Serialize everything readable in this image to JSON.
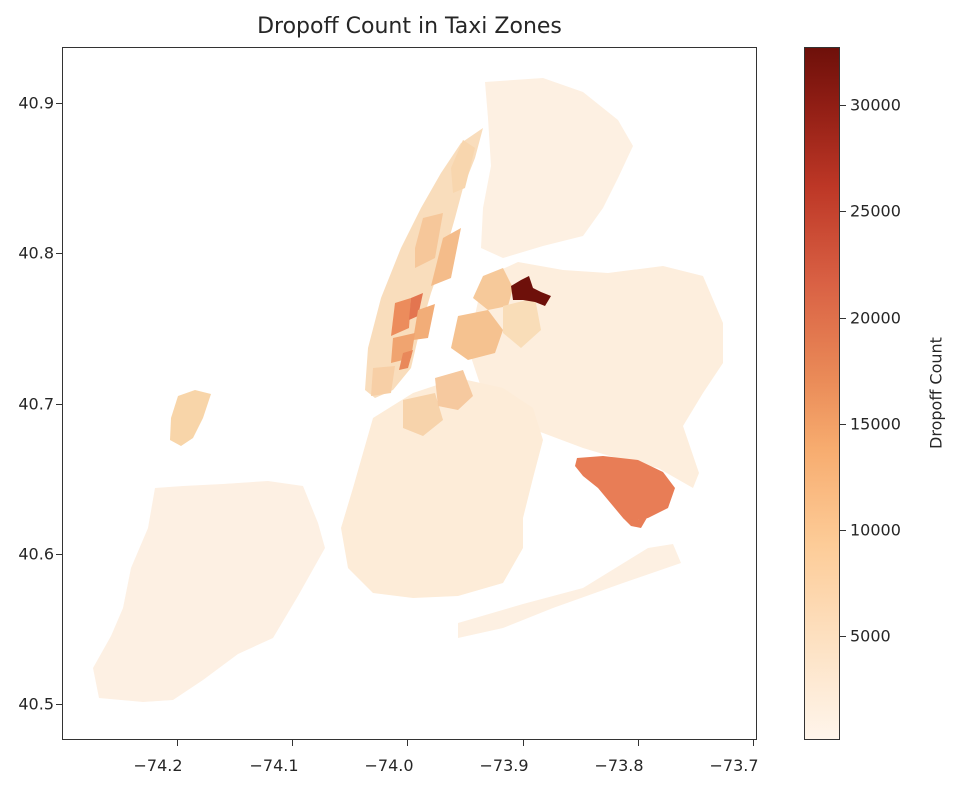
{
  "title": "Dropoff Count in Taxi Zones",
  "axes": {
    "x_ticks": [
      "−74.2",
      "−74.1",
      "−74.0",
      "−73.9",
      "−73.8",
      "−73.7"
    ],
    "y_ticks": [
      "40.9",
      "40.8",
      "40.7",
      "40.6",
      "40.5"
    ],
    "xlim": [
      -74.28,
      -73.68
    ],
    "ylim": [
      40.475,
      40.935
    ]
  },
  "colorbar": {
    "label": "Dropoff Count",
    "ticks": [
      "5000",
      "10000",
      "15000",
      "20000",
      "25000",
      "30000"
    ],
    "range": [
      0,
      32700
    ],
    "colormap": "OrRd"
  },
  "colors": {
    "min": "#fff5eb",
    "max": "#6e100a",
    "airport_jfk": "#e87d56",
    "airport_lga": "#6e100a"
  },
  "regions": {
    "laguardia_dropoffs_approx": 32700,
    "jfk_dropoffs_approx": 19500
  }
}
